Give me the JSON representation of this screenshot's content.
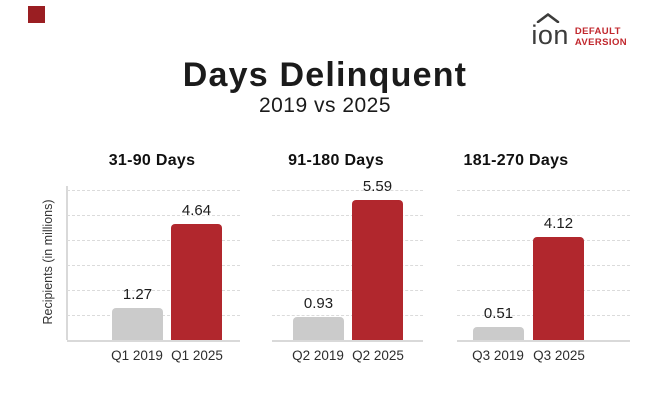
{
  "brand": {
    "wordmark": "ion",
    "tagline_line1": "DEFAULT",
    "tagline_line2": "AVERSION",
    "logo_dark": "#3c3c3b",
    "logo_red": "#c1272d",
    "accent_square_color": "#9a1e22"
  },
  "title": "Days Delinquent",
  "subtitle": "2019 vs 2025",
  "chart_data": {
    "type": "bar",
    "title": "Days Delinquent",
    "subtitle": "2019 vs 2025",
    "ylabel": "Recipients (in millions)",
    "ylim": [
      0,
      6
    ],
    "gridline_values": [
      1,
      2,
      3,
      4,
      5,
      6
    ],
    "grid": "dashed horizontal",
    "legend": "none",
    "series_colors": {
      "2019": "#cbcbcb",
      "2025": "#b1272d"
    },
    "groups": [
      {
        "label": "31-90 Days",
        "bars": [
          {
            "label": "Q1 2019",
            "series": "2019",
            "value": 1.27
          },
          {
            "label": "Q1 2025",
            "series": "2025",
            "value": 4.64
          }
        ]
      },
      {
        "label": "91-180 Days",
        "bars": [
          {
            "label": "Q2 2019",
            "series": "2019",
            "value": 0.93
          },
          {
            "label": "Q2 2025",
            "series": "2025",
            "value": 5.59
          }
        ]
      },
      {
        "label": "181-270 Days",
        "bars": [
          {
            "label": "Q3 2019",
            "series": "2019",
            "value": 0.51
          },
          {
            "label": "Q3 2025",
            "series": "2025",
            "value": 4.12
          }
        ]
      }
    ]
  }
}
